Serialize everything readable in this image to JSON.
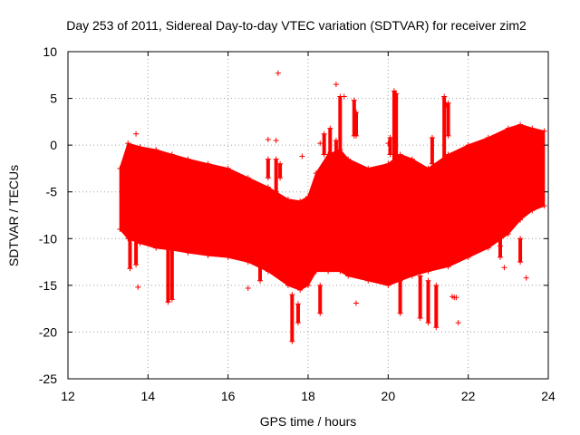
{
  "chart_data": {
    "type": "scatter",
    "title": "Day 253 of 2011, Sidereal Day-to-day VTEC variation (SDTVAR) for receiver zim2",
    "xlabel": "GPS time / hours",
    "ylabel": "SDTVAR / TECUs",
    "xlim": [
      12,
      24
    ],
    "ylim": [
      -25,
      10
    ],
    "xticks": [
      "12",
      "14",
      "16",
      "18",
      "20",
      "22",
      "24"
    ],
    "yticks": [
      "10",
      "5",
      "0",
      "-5",
      "-10",
      "-15",
      "-20",
      "-25"
    ],
    "series_color": "#ff0000",
    "marker": "+",
    "grid": true,
    "envelope": {
      "x": [
        13.3,
        13.5,
        13.8,
        14.2,
        14.6,
        15.0,
        15.5,
        16.0,
        16.5,
        17.0,
        17.5,
        17.8,
        18.0,
        18.2,
        18.5,
        18.8,
        19.0,
        19.5,
        20.0,
        20.3,
        20.6,
        21.0,
        21.5,
        22.0,
        22.5,
        23.0,
        23.3,
        23.6,
        23.9
      ],
      "upper": [
        -2.5,
        0.2,
        -0.2,
        -0.5,
        -1.0,
        -1.5,
        -2.0,
        -2.5,
        -3.5,
        -4.5,
        -5.8,
        -6.0,
        -5.5,
        -3.0,
        -1.0,
        -0.5,
        -1.5,
        -2.5,
        -2.0,
        -1.0,
        -1.5,
        -2.5,
        -1.0,
        0.0,
        0.8,
        1.8,
        2.2,
        1.8,
        1.5
      ],
      "lower": [
        -9.0,
        -10.0,
        -10.5,
        -11.0,
        -11.2,
        -11.5,
        -11.8,
        -12.0,
        -12.5,
        -13.5,
        -15.0,
        -15.5,
        -15.0,
        -13.5,
        -13.5,
        -13.5,
        -14.0,
        -14.5,
        -15.0,
        -14.5,
        -14.0,
        -13.5,
        -13.0,
        -12.0,
        -11.0,
        -9.5,
        -8.0,
        -7.0,
        -6.5
      ]
    },
    "spikes": [
      {
        "x": 13.55,
        "ymin": -13.2,
        "ymax": -9.5
      },
      {
        "x": 13.7,
        "ymin": -12.8,
        "ymax": -10.0
      },
      {
        "x": 14.5,
        "ymin": -16.8,
        "ymax": -11.0
      },
      {
        "x": 14.6,
        "ymin": -16.5,
        "ymax": -11.0
      },
      {
        "x": 16.8,
        "ymin": -14.5,
        "ymax": -12.5
      },
      {
        "x": 17.0,
        "ymin": -3.5,
        "ymax": -1.5
      },
      {
        "x": 17.2,
        "ymin": -5.0,
        "ymax": -1.5
      },
      {
        "x": 17.3,
        "ymin": -3.5,
        "ymax": -2.0
      },
      {
        "x": 17.6,
        "ymin": -21.0,
        "ymax": -16.0
      },
      {
        "x": 17.75,
        "ymin": -19.0,
        "ymax": -17.0
      },
      {
        "x": 18.3,
        "ymin": -18.0,
        "ymax": -15.0
      },
      {
        "x": 18.4,
        "ymin": -1.0,
        "ymax": 1.2
      },
      {
        "x": 18.55,
        "ymin": -1.0,
        "ymax": 1.8
      },
      {
        "x": 18.7,
        "ymin": -3.0,
        "ymax": 0.5
      },
      {
        "x": 18.8,
        "ymin": -1.0,
        "ymax": 5.2
      },
      {
        "x": 19.15,
        "ymin": 1.0,
        "ymax": 4.8
      },
      {
        "x": 19.2,
        "ymin": 1.0,
        "ymax": 3.5
      },
      {
        "x": 20.05,
        "ymin": -1.0,
        "ymax": 0.8
      },
      {
        "x": 20.15,
        "ymin": -3.0,
        "ymax": 5.8
      },
      {
        "x": 20.2,
        "ymin": -2.0,
        "ymax": 5.5
      },
      {
        "x": 20.3,
        "ymin": -18.0,
        "ymax": -14.0
      },
      {
        "x": 20.8,
        "ymin": -18.5,
        "ymax": -14.0
      },
      {
        "x": 21.0,
        "ymin": -19.0,
        "ymax": -14.5
      },
      {
        "x": 21.2,
        "ymin": -19.5,
        "ymax": -15.0
      },
      {
        "x": 21.1,
        "ymin": -2.0,
        "ymax": 0.8
      },
      {
        "x": 21.4,
        "ymin": -2.0,
        "ymax": 5.2
      },
      {
        "x": 21.5,
        "ymin": 1.0,
        "ymax": 4.5
      },
      {
        "x": 22.8,
        "ymin": -12.0,
        "ymax": -9.5
      },
      {
        "x": 23.05,
        "ymin": -7.0,
        "ymax": -4.0
      },
      {
        "x": 23.3,
        "ymin": -12.5,
        "ymax": -10.0
      }
    ],
    "outliers": [
      {
        "x": 13.7,
        "y": 1.2
      },
      {
        "x": 13.75,
        "y": -15.2
      },
      {
        "x": 16.5,
        "y": -15.3
      },
      {
        "x": 17.0,
        "y": 0.6
      },
      {
        "x": 17.2,
        "y": 0.5
      },
      {
        "x": 17.25,
        "y": 7.7
      },
      {
        "x": 17.85,
        "y": -1.2
      },
      {
        "x": 18.3,
        "y": 0.2
      },
      {
        "x": 18.7,
        "y": 6.5
      },
      {
        "x": 18.9,
        "y": 5.2
      },
      {
        "x": 19.2,
        "y": -16.9
      },
      {
        "x": 20.0,
        "y": 0.2
      },
      {
        "x": 21.45,
        "y": 4.3
      },
      {
        "x": 21.65,
        "y": -16.3
      },
      {
        "x": 21.7,
        "y": -16.3
      },
      {
        "x": 21.75,
        "y": -19.0
      },
      {
        "x": 22.8,
        "y": -10.8
      },
      {
        "x": 22.9,
        "y": -13.1
      },
      {
        "x": 23.45,
        "y": -14.2
      },
      {
        "x": 21.6,
        "y": -16.2
      }
    ]
  }
}
